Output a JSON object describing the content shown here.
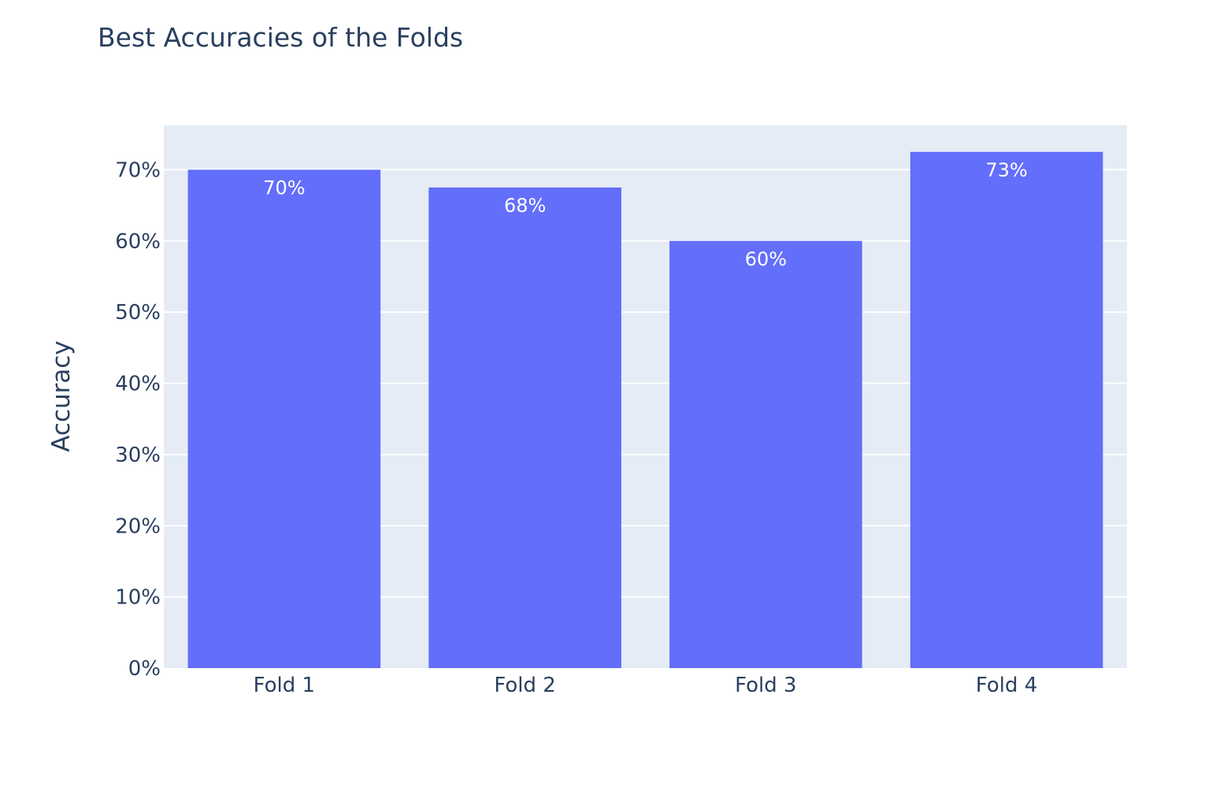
{
  "chart_data": {
    "type": "bar",
    "title": "Best Accuracies of the Folds",
    "xlabel": "",
    "ylabel": "Accuracy",
    "categories": [
      "Fold 1",
      "Fold 2",
      "Fold 3",
      "Fold 4"
    ],
    "values": [
      0.7,
      0.675,
      0.6,
      0.725
    ],
    "data_labels": [
      "70%",
      "68%",
      "60%",
      "73%"
    ],
    "ylim": [
      0,
      0.7624
    ],
    "yticks": [
      0,
      0.1,
      0.2,
      0.3,
      0.4,
      0.5,
      0.6,
      0.7
    ],
    "ytick_labels": [
      "0%",
      "10%",
      "20%",
      "30%",
      "40%",
      "50%",
      "60%",
      "70%"
    ],
    "grid": true,
    "bar_color": "#636efa",
    "plot_background": "#e5ecf6",
    "text_color": "#2a3f5f",
    "data_label_color": "#ffffff"
  }
}
